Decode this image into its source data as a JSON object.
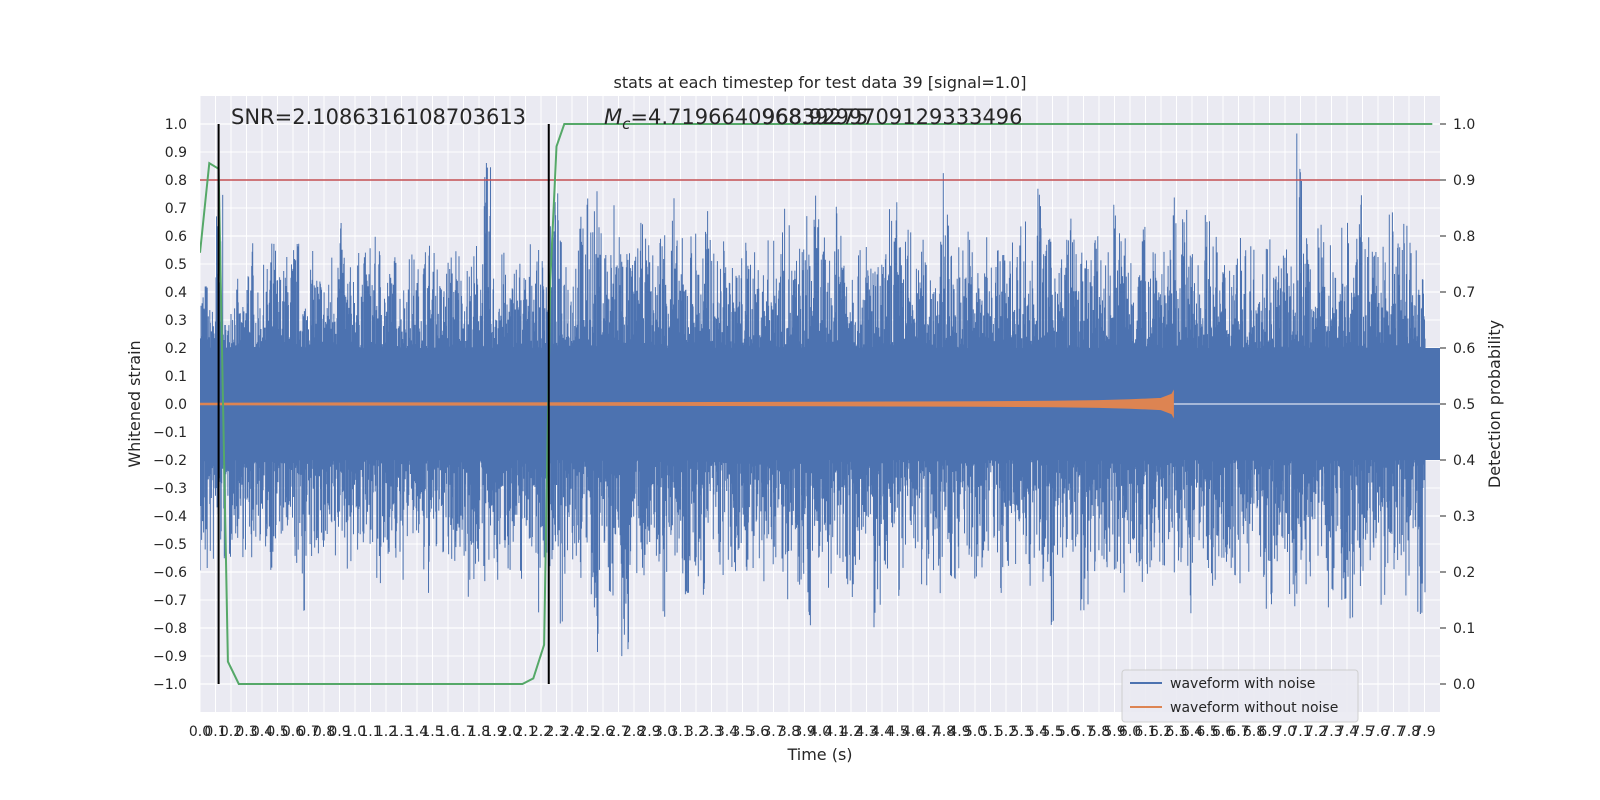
{
  "chart_data": {
    "type": "line",
    "title": "stats at each timestep for test data 39 [signal=1.0]",
    "xlabel": "Time (s)",
    "ylabel": "Whitened strain",
    "ylabel_right": "Detection probability",
    "xlim": [
      0.0,
      8.0
    ],
    "ylim": [
      -1.1,
      1.1
    ],
    "ylim_right": [
      -0.05,
      1.05
    ],
    "grid": true,
    "legend_position": "lower-right",
    "x_ticks": [
      "0.0",
      "0.1",
      "0.2",
      "0.3",
      "0.4",
      "0.5",
      "0.6",
      "0.7",
      "0.8",
      "0.9",
      "1.0",
      "1.1",
      "1.2",
      "1.3",
      "1.4",
      "1.5",
      "1.6",
      "1.7",
      "1.8",
      "1.9",
      "2.0",
      "2.1",
      "2.2",
      "2.3",
      "2.4",
      "2.5",
      "2.6",
      "2.7",
      "2.8",
      "2.9",
      "3.0",
      "3.1",
      "3.2",
      "3.3",
      "3.4",
      "3.5",
      "3.6",
      "3.7",
      "3.8",
      "3.9",
      "4.0",
      "4.1",
      "4.2",
      "4.3",
      "4.4",
      "4.5",
      "4.6",
      "4.7",
      "4.8",
      "4.9",
      "5.0",
      "5.1",
      "5.2",
      "5.3",
      "5.4",
      "5.5",
      "5.6",
      "5.7",
      "5.8",
      "5.9",
      "6.0",
      "6.1",
      "6.2",
      "6.3",
      "6.4",
      "6.5",
      "6.6",
      "6.7",
      "6.8",
      "6.9",
      "7.0",
      "7.1",
      "7.2",
      "7.3",
      "7.4",
      "7.5",
      "7.6",
      "7.7",
      "7.8",
      "7.9"
    ],
    "y_ticks_left": [
      "1.0",
      "0.9",
      "0.8",
      "0.7",
      "0.6",
      "0.5",
      "0.4",
      "0.3",
      "0.2",
      "0.1",
      "0.0",
      "−0.1",
      "−0.2",
      "−0.3",
      "−0.4",
      "−0.5",
      "−0.6",
      "−0.7",
      "−0.8",
      "−0.9",
      "−1.0"
    ],
    "y_ticks_right": [
      "1.0",
      "0.9",
      "0.8",
      "0.7",
      "0.6",
      "0.5",
      "0.4",
      "0.3",
      "0.2",
      "0.1",
      "0.0"
    ],
    "annotations": {
      "snr": "SNR=2.1086316108703613",
      "mc_text": "=4.719664096839275",
      "mc_overlap": "968.9299709129333496"
    },
    "threshold": {
      "axis": "left",
      "value": 0.8,
      "color": "#c44e52"
    },
    "vlines": [
      0.12,
      2.25
    ],
    "series": [
      {
        "name": "waveform with noise",
        "color": "#4c72b0",
        "axis": "left",
        "x_range": [
          0.0,
          8.0
        ],
        "envelope_upper": [
          0.45,
          0.35,
          0.75,
          0.3,
          0.45,
          0.35,
          0.6,
          0.4,
          0.5,
          0.6,
          0.5,
          0.55,
          0.6,
          0.4,
          0.55,
          0.5,
          0.45,
          0.6,
          0.65,
          0.5,
          0.55,
          0.55,
          0.6,
          0.6,
          0.5,
          0.55,
          0.45,
          0.55,
          0.5,
          0.6,
          0.55,
          0.45,
          0.55,
          0.6,
          0.5,
          0.55,
          0.6,
          0.87,
          0.5,
          0.55,
          0.45,
          0.55,
          0.5,
          0.6,
          0.55,
          0.65,
          0.77,
          0.6,
          0.55,
          0.7,
          0.75,
          0.78,
          0.65,
          0.6,
          0.78,
          0.6,
          0.55,
          0.65,
          0.6,
          0.55,
          0.7,
          0.8,
          0.6,
          0.55,
          0.65,
          0.6,
          0.7,
          0.55,
          0.6,
          0.5,
          0.55,
          0.6,
          0.55,
          0.5,
          0.6,
          0.65,
          0.7,
          0.55,
          0.6,
          0.7,
          0.75,
          0.6,
          0.55,
          0.95,
          0.65,
          0.6,
          0.55,
          0.6,
          0.5,
          0.55,
          0.75,
          0.6,
          0.65,
          0.5,
          0.6,
          0.55,
          0.6,
          0.85,
          0.55,
          0.6,
          0.65,
          0.5,
          0.6,
          0.55,
          0.6,
          0.55,
          0.6,
          0.7,
          0.55,
          0.8,
          0.6,
          0.65,
          0.55,
          0.7,
          0.6,
          0.55,
          0.65,
          0.6,
          0.55,
          0.75,
          0.65,
          0.6,
          0.55,
          0.65,
          0.7,
          0.6,
          0.55,
          0.75,
          0.7,
          0.6,
          0.55,
          0.7,
          0.6,
          0.55,
          0.6,
          0.65,
          0.55,
          0.6,
          0.6,
          0.65,
          0.55,
          0.6,
          0.5,
          1.0,
          0.6,
          0.55,
          0.65,
          0.6,
          0.55,
          0.7,
          0.6,
          0.75,
          0.6,
          0.55,
          0.65,
          0.7,
          0.6,
          0.75,
          0.6,
          0.55,
          0.7,
          0.6
        ],
        "envelope_lower": [
          -0.65,
          -0.6,
          -0.55,
          -0.6,
          -0.5,
          -0.55,
          -0.6,
          -0.5,
          -0.55,
          -0.6,
          -0.5,
          -0.55,
          -0.6,
          -0.77,
          -0.6,
          -0.55,
          -0.6,
          -0.65,
          -0.5,
          -0.6,
          -0.55,
          -0.6,
          -0.5,
          -0.78,
          -0.55,
          -0.6,
          -0.65,
          -0.5,
          -0.55,
          -0.7,
          -0.6,
          -0.55,
          -0.65,
          -0.6,
          -0.55,
          -0.7,
          -0.6,
          -0.65,
          -0.7,
          -0.55,
          -0.6,
          -0.65,
          -0.5,
          -0.55,
          -0.75,
          -0.6,
          -0.55,
          -0.8,
          -0.6,
          -0.65,
          -0.55,
          -0.93,
          -0.6,
          -0.7,
          -0.55,
          -0.98,
          -0.6,
          -0.7,
          -0.55,
          -0.6,
          -0.8,
          -0.55,
          -0.6,
          -0.75,
          -0.65,
          -0.7,
          -0.55,
          -0.6,
          -0.65,
          -0.7,
          -0.55,
          -0.6,
          -0.65,
          -0.75,
          -0.6,
          -0.55,
          -0.7,
          -0.6,
          -0.65,
          -0.8,
          -0.6,
          -0.55,
          -0.75,
          -0.6,
          -0.65,
          -0.78,
          -0.6,
          -0.55,
          -0.85,
          -0.6,
          -0.65,
          -0.7,
          -0.6,
          -0.55,
          -0.65,
          -0.6,
          -0.7,
          -0.55,
          -0.65,
          -0.6,
          -0.6,
          -0.75,
          -0.6,
          -0.55,
          -0.7,
          -0.65,
          -0.6,
          -0.55,
          -0.7,
          -0.6,
          -0.65,
          -0.79,
          -0.6,
          -0.55,
          -0.6,
          -0.75,
          -0.6,
          -0.55,
          -0.65,
          -0.6,
          -0.7,
          -0.55,
          -0.6,
          -0.65,
          -0.7,
          -0.6,
          -0.55,
          -0.65,
          -0.6,
          -0.75,
          -0.7,
          -0.6,
          -0.65,
          -0.55,
          -0.6,
          -0.7,
          -0.6,
          -0.55,
          -0.65,
          -0.75,
          -0.6,
          -0.55,
          -0.75,
          -0.7,
          -0.65,
          -0.6,
          -0.55,
          -0.8,
          -0.6,
          -0.7,
          -0.78,
          -0.65,
          -0.6,
          -0.55,
          -0.75,
          -0.6,
          -0.65,
          -0.7,
          -0.6,
          -0.78
        ]
      },
      {
        "name": "waveform without noise",
        "color": "#dd8452",
        "axis": "left",
        "x": [
          0.0,
          1.0,
          2.0,
          3.0,
          4.0,
          4.5,
          5.0,
          5.5,
          5.8,
          6.0,
          6.2,
          6.27,
          6.28
        ],
        "amplitude": [
          0.003,
          0.004,
          0.004,
          0.005,
          0.006,
          0.007,
          0.008,
          0.01,
          0.012,
          0.015,
          0.02,
          0.035,
          0.045
        ]
      },
      {
        "name": "Detection probability",
        "color": "#55a868",
        "axis": "right",
        "x": [
          0.0,
          0.06,
          0.12,
          0.18,
          0.25,
          1.0,
          2.0,
          2.08,
          2.15,
          2.22,
          2.26,
          2.3,
          2.35,
          2.4,
          3.0,
          4.0,
          5.0,
          6.0,
          7.0,
          7.95
        ],
        "y": [
          0.77,
          0.93,
          0.92,
          0.04,
          0.0,
          0.0,
          0.0,
          0.0,
          0.01,
          0.07,
          0.72,
          0.96,
          1.0,
          1.0,
          1.0,
          1.0,
          1.0,
          1.0,
          1.0,
          1.0
        ]
      }
    ]
  }
}
